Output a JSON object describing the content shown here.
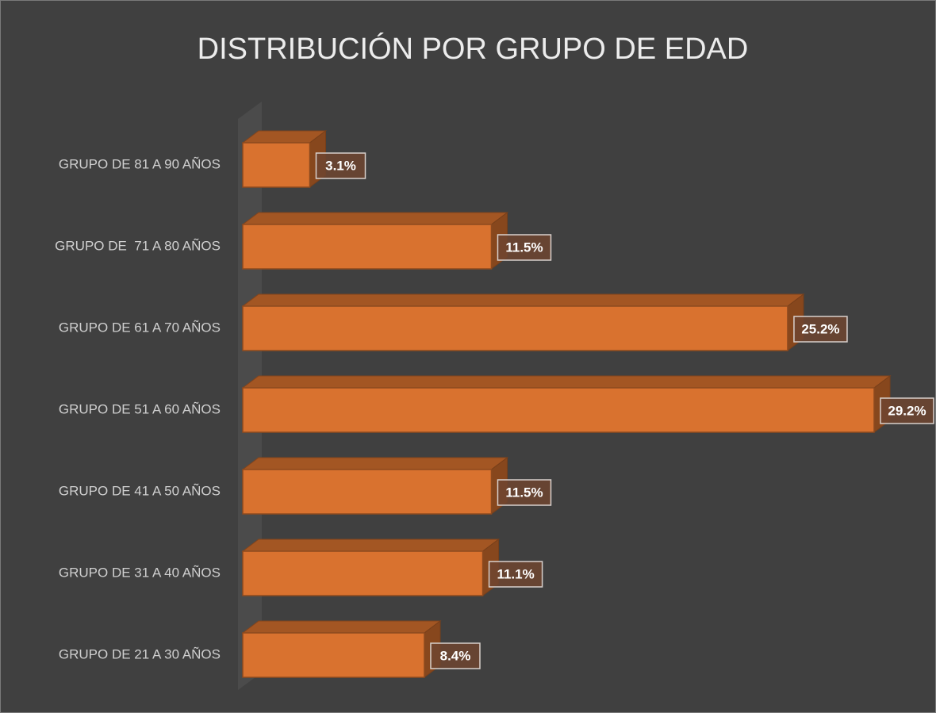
{
  "chart_data": {
    "type": "bar3d",
    "title": "DISTRIBUCIÓN POR GRUPO DE EDAD",
    "categories": [
      "GRUPO DE 81 A 90 AÑOS",
      "GRUPO DE  71 A 80 AÑOS",
      "GRUPO DE 61 A 70 AÑOS",
      "GRUPO DE 51 A 60 AÑOS",
      "GRUPO DE 41 A 50 AÑOS",
      "GRUPO DE 31 A 40 AÑOS",
      "GRUPO DE 21 A 30 AÑOS"
    ],
    "values": [
      3.1,
      11.5,
      25.2,
      29.2,
      11.5,
      11.1,
      8.4
    ],
    "value_labels": [
      "3.1%",
      "11.5%",
      "25.2%",
      "29.2%",
      "11.5%",
      "11.1%",
      "8.4%"
    ],
    "color": "#d9722f"
  }
}
